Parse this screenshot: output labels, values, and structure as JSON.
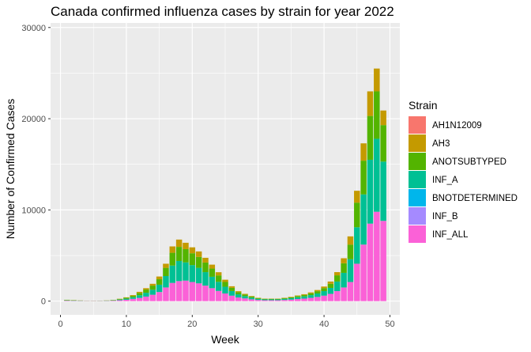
{
  "chart_data": {
    "type": "bar",
    "stacked": true,
    "title": "Canada confirmed influenza cases by strain for year 2022",
    "xlabel": "Week",
    "ylabel": "Number of Confirmed Cases",
    "xlim": [
      -1.5,
      51.5
    ],
    "ylim": [
      -1500,
      30500
    ],
    "x_ticks": [
      0,
      10,
      20,
      30,
      40,
      50
    ],
    "y_ticks": [
      0,
      10000,
      20000,
      30000
    ],
    "grid": true,
    "legend_position": "right",
    "legend_title": "Strain",
    "weeks": [
      1,
      2,
      3,
      4,
      5,
      6,
      7,
      8,
      9,
      10,
      11,
      12,
      13,
      14,
      15,
      16,
      17,
      18,
      19,
      20,
      21,
      22,
      23,
      24,
      25,
      26,
      27,
      28,
      29,
      30,
      31,
      32,
      33,
      34,
      35,
      36,
      37,
      38,
      39,
      40,
      41,
      42,
      43,
      44,
      45,
      46,
      47,
      48,
      49
    ],
    "series": [
      {
        "name": "AH1N12009",
        "color": "#F8766D",
        "values": [
          0,
          0,
          0,
          0,
          0,
          0,
          0,
          0,
          0,
          0,
          0,
          0,
          0,
          0,
          0,
          0,
          0,
          0,
          0,
          0,
          0,
          0,
          0,
          0,
          0,
          0,
          0,
          0,
          0,
          0,
          0,
          0,
          0,
          0,
          0,
          0,
          0,
          0,
          0,
          0,
          0,
          0,
          0,
          0,
          0,
          0,
          0,
          0,
          0
        ]
      },
      {
        "name": "AH3",
        "color": "#C49A00",
        "values": [
          20,
          15,
          10,
          5,
          5,
          5,
          10,
          20,
          30,
          50,
          80,
          120,
          150,
          200,
          300,
          450,
          700,
          800,
          700,
          650,
          600,
          520,
          430,
          350,
          250,
          170,
          110,
          80,
          60,
          40,
          30,
          30,
          30,
          40,
          50,
          60,
          80,
          100,
          130,
          170,
          250,
          350,
          550,
          900,
          1300,
          1900,
          2700,
          2500,
          1600
        ]
      },
      {
        "name": "ANOTSUBTYPED",
        "color": "#53B400",
        "values": [
          40,
          30,
          20,
          10,
          10,
          10,
          20,
          30,
          60,
          100,
          150,
          250,
          350,
          450,
          600,
          900,
          1400,
          1550,
          1450,
          1300,
          1200,
          1050,
          900,
          700,
          520,
          350,
          230,
          170,
          120,
          80,
          60,
          60,
          60,
          80,
          100,
          130,
          160,
          200,
          250,
          330,
          450,
          680,
          1050,
          1600,
          2700,
          3700,
          4800,
          5200,
          4000
        ]
      },
      {
        "name": "INF_A",
        "color": "#00C094",
        "values": [
          40,
          30,
          20,
          10,
          10,
          15,
          20,
          40,
          70,
          120,
          180,
          300,
          420,
          550,
          800,
          1250,
          1900,
          2200,
          2000,
          1850,
          1700,
          1480,
          1250,
          1000,
          740,
          510,
          350,
          250,
          180,
          120,
          90,
          90,
          90,
          120,
          150,
          200,
          240,
          300,
          380,
          500,
          650,
          1050,
          1600,
          2500,
          4000,
          5500,
          7000,
          8000,
          6500
        ]
      },
      {
        "name": "BNOTDETERMINED",
        "color": "#00B6EB",
        "values": [
          0,
          0,
          0,
          0,
          0,
          0,
          0,
          0,
          0,
          0,
          0,
          0,
          0,
          0,
          0,
          0,
          0,
          0,
          0,
          0,
          0,
          0,
          0,
          0,
          0,
          0,
          0,
          0,
          0,
          0,
          0,
          0,
          0,
          0,
          0,
          0,
          0,
          0,
          0,
          0,
          0,
          0,
          0,
          0,
          0,
          0,
          0,
          0,
          0
        ]
      },
      {
        "name": "INF_B",
        "color": "#A58AFF",
        "values": [
          0,
          0,
          0,
          0,
          0,
          0,
          0,
          0,
          0,
          0,
          0,
          0,
          0,
          0,
          0,
          0,
          0,
          0,
          0,
          0,
          0,
          0,
          0,
          0,
          0,
          0,
          0,
          0,
          0,
          0,
          0,
          0,
          0,
          0,
          0,
          0,
          0,
          0,
          0,
          0,
          0,
          0,
          0,
          0,
          0,
          0,
          0,
          0,
          0
        ]
      },
      {
        "name": "INF_ALL",
        "color": "#FB61D7",
        "values": [
          50,
          40,
          30,
          20,
          20,
          20,
          30,
          50,
          100,
          150,
          250,
          350,
          500,
          700,
          1000,
          1500,
          2000,
          2200,
          2250,
          2100,
          1950,
          1700,
          1420,
          1120,
          840,
          600,
          400,
          300,
          200,
          130,
          100,
          100,
          100,
          130,
          170,
          230,
          280,
          360,
          460,
          600,
          800,
          1100,
          1500,
          2100,
          4100,
          6200,
          8500,
          9800,
          8800
        ]
      }
    ]
  }
}
